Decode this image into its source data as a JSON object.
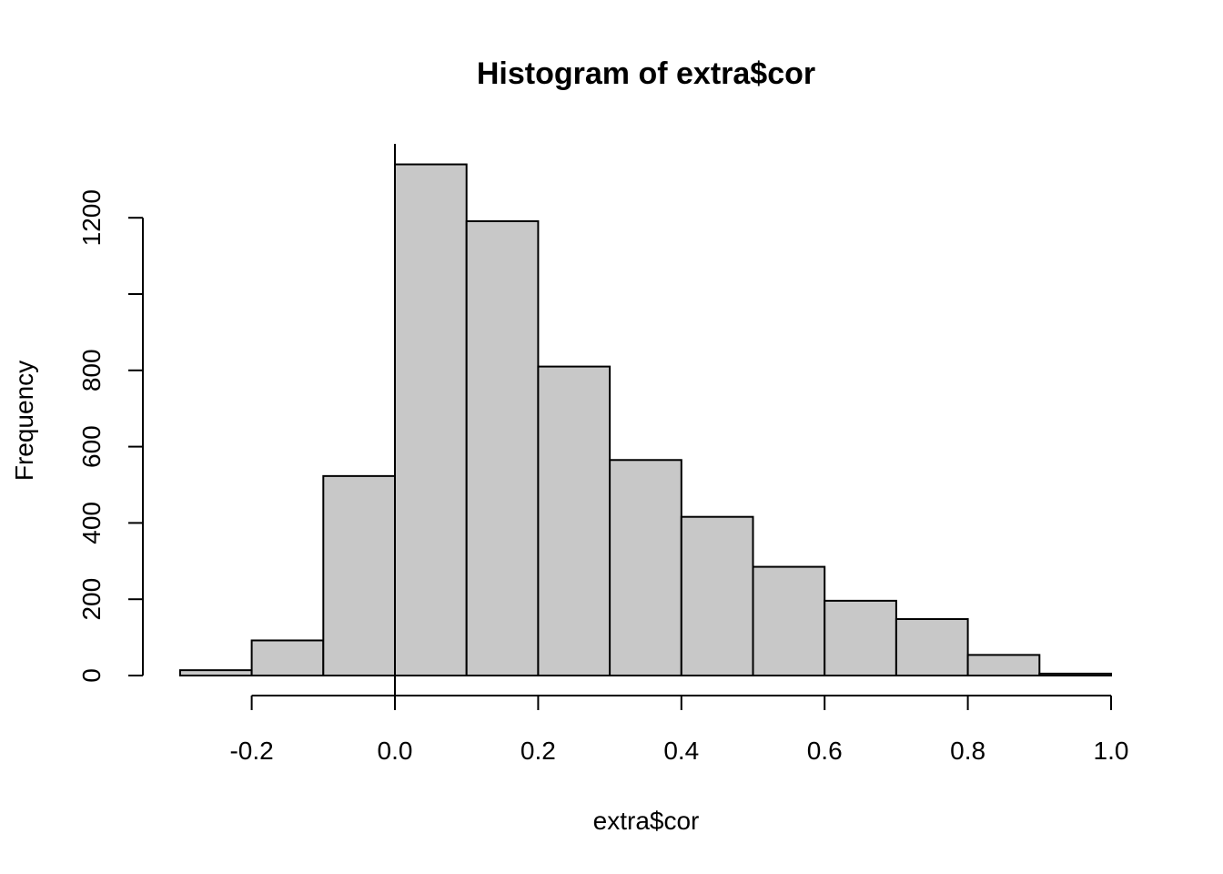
{
  "chart_data": {
    "type": "bar",
    "title": "Histogram of extra$cor",
    "xlabel": "extra$cor",
    "ylabel": "Frequency",
    "bins": [
      {
        "from": -0.3,
        "to": -0.2,
        "count": 14
      },
      {
        "from": -0.2,
        "to": -0.1,
        "count": 92
      },
      {
        "from": -0.1,
        "to": 0.0,
        "count": 523
      },
      {
        "from": 0.0,
        "to": 0.1,
        "count": 1340
      },
      {
        "from": 0.1,
        "to": 0.2,
        "count": 1191
      },
      {
        "from": 0.2,
        "to": 0.3,
        "count": 810
      },
      {
        "from": 0.3,
        "to": 0.4,
        "count": 565
      },
      {
        "from": 0.4,
        "to": 0.5,
        "count": 416
      },
      {
        "from": 0.5,
        "to": 0.6,
        "count": 285
      },
      {
        "from": 0.6,
        "to": 0.7,
        "count": 196
      },
      {
        "from": 0.7,
        "to": 0.8,
        "count": 148
      },
      {
        "from": 0.8,
        "to": 0.9,
        "count": 54
      },
      {
        "from": 0.9,
        "to": 1.0,
        "count": 5
      }
    ],
    "x_ticks": [
      -0.2,
      0.0,
      0.2,
      0.4,
      0.6,
      0.8,
      1.0
    ],
    "x_tick_labels": [
      "-0.2",
      "0.0",
      "0.2",
      "0.4",
      "0.6",
      "0.8",
      "1.0"
    ],
    "y_ticks": [
      0,
      200,
      400,
      600,
      800,
      1000,
      1200
    ],
    "y_tick_labels": [
      "0",
      "200",
      "400",
      "600",
      "800",
      "",
      "1200"
    ],
    "xlim": [
      -0.3,
      1.0
    ],
    "ylim": [
      0,
      1340
    ],
    "reference_line_x": 0.0,
    "grid": false,
    "colors": {
      "bar_fill": "#c8c8c8",
      "bar_stroke": "#000000"
    }
  }
}
